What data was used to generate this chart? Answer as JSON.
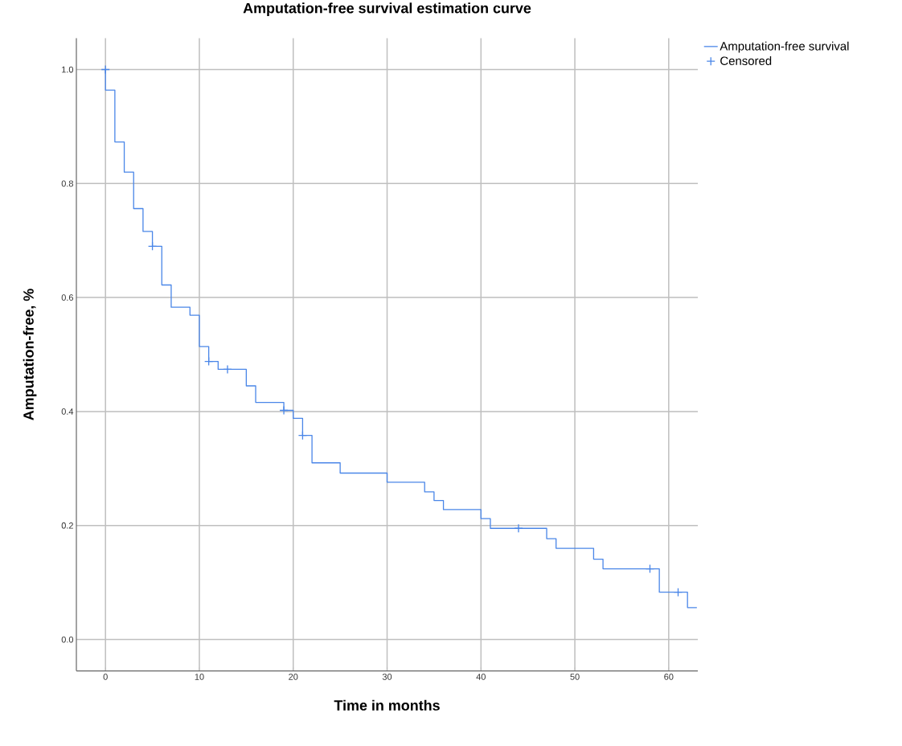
{
  "chart_data": {
    "type": "step",
    "title": "Amputation-free survival estimation curve",
    "xlabel": "Time in months",
    "ylabel": "Amputation-free, %",
    "xlim": [
      -3.1,
      63.1
    ],
    "ylim": [
      -0.055,
      1.055
    ],
    "xticks": [
      0,
      10,
      20,
      30,
      40,
      50,
      60
    ],
    "yticks": [
      {
        "value": 0,
        "label": "0.0"
      },
      {
        "value": 0.2,
        "label": "0.2"
      },
      {
        "value": 0.4,
        "label": "0.4"
      },
      {
        "value": 0.6,
        "label": "0.6"
      },
      {
        "value": 0.8,
        "label": "0.8"
      },
      {
        "value": 1,
        "label": "1.0"
      }
    ],
    "grid": true,
    "legend": "right",
    "series": [
      {
        "name": "Amputation-free survival",
        "color": "#4a86e8",
        "marker": "none",
        "line_style": "solid",
        "x": [
          0,
          0,
          1,
          2,
          3,
          4,
          5,
          6,
          7,
          9,
          10,
          11,
          12,
          15,
          16,
          19,
          20,
          21,
          22,
          25,
          30,
          34,
          35,
          36,
          40,
          41,
          47,
          48,
          52,
          53,
          59,
          62,
          63
        ],
        "values": [
          1.0,
          0.964,
          0.873,
          0.82,
          0.756,
          0.716,
          0.69,
          0.622,
          0.583,
          0.569,
          0.514,
          0.488,
          0.474,
          0.445,
          0.416,
          0.402,
          0.388,
          0.358,
          0.31,
          0.292,
          0.276,
          0.259,
          0.244,
          0.228,
          0.212,
          0.195,
          0.177,
          0.16,
          0.141,
          0.124,
          0.083,
          0.056,
          0.056
        ]
      },
      {
        "name": "Censored",
        "type": "scatter",
        "color": "#4a86e8",
        "marker": "cross",
        "x": [
          0,
          5,
          11,
          13,
          19,
          21,
          44,
          58,
          61
        ],
        "values": [
          1.0,
          0.69,
          0.488,
          0.474,
          0.402,
          0.358,
          0.195,
          0.124,
          0.083
        ]
      }
    ]
  }
}
